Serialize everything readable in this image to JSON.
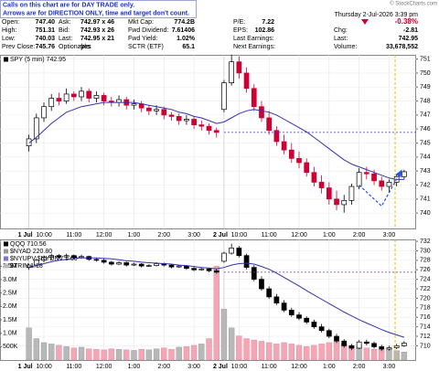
{
  "header": {
    "notice": [
      "Calls on this chart are for DAY TRADE only.",
      "Arrows are for DIRECTION ONLY, time and target don't count."
    ],
    "brand": "© StockCharts.com",
    "date": "Thursday 2-Jul-2026 3:39 pm",
    "rows": [
      [
        "Open:",
        "747.40",
        "Ask:",
        "742.97 x 46",
        "Mkt Cap:",
        "774.2B",
        "P/E:",
        "7.22",
        "-0.38%"
      ],
      [
        "High:",
        "751.31",
        "Bid:",
        "742.93 x 26",
        "Fwd Dividend:",
        "7.61406",
        "EPS:",
        "102.86",
        "Chg:",
        "-2.81"
      ],
      [
        "Low:",
        "740.03",
        "Last:",
        "742.95 x 21",
        "Fwd Yield:",
        "1.02%",
        "Last Earnings:",
        "Last:",
        "742.95"
      ],
      [
        "Prev Close:",
        "745.76",
        "Optionable:",
        "yes",
        "SCTR (ETF)",
        "65.1",
        "Next Earnings:",
        "Volume:",
        "33,678,552"
      ]
    ]
  },
  "chart_data": [
    {
      "type": "candlestick",
      "legend": [
        {
          "name": "SPY (5 min) 742.95",
          "color": "#000000"
        }
      ],
      "xlim": [
        -3.85,
        51.6
      ],
      "xticks": [
        {
          "value": 0,
          "label": "1 Jul"
        },
        {
          "value": 2,
          "label": "10:00"
        },
        {
          "value": 6,
          "label": "11:00"
        },
        {
          "value": 10,
          "label": "12:00"
        },
        {
          "value": 14,
          "label": "1:00"
        },
        {
          "value": 18,
          "label": "2:00"
        },
        {
          "value": 22,
          "label": "3:00"
        },
        {
          "value": 26,
          "label": "2 Jul"
        },
        {
          "value": 28,
          "label": "10:00"
        },
        {
          "value": 32,
          "label": "11:00"
        },
        {
          "value": 36,
          "label": "12:00"
        },
        {
          "value": 40,
          "label": "1:00"
        },
        {
          "value": 44,
          "label": "2:00"
        },
        {
          "value": 48,
          "label": "3:00"
        }
      ],
      "ylim": [
        738.9,
        751.3
      ],
      "yticks": [
        740,
        741,
        742,
        743,
        744,
        745,
        746,
        747,
        748,
        749,
        750,
        751
      ],
      "grid": true,
      "up_color": "#ffffff",
      "down_color": "#000000",
      "loss_color": "#cc0033",
      "open": [
        744.8,
        745.3,
        746.8,
        747.6,
        748.2,
        748.0,
        748.5,
        748.3,
        748.7,
        748.2,
        748.4,
        748.0,
        747.9,
        748.1,
        747.7,
        747.8,
        747.5,
        747.3,
        747.4,
        747.0,
        746.9,
        746.6,
        746.7,
        746.3,
        746.2,
        745.9,
        747.4,
        749.3,
        750.8,
        750.0,
        748.9,
        747.6,
        746.8,
        745.9,
        745.1,
        744.5,
        743.9,
        743.6,
        742.9,
        742.2,
        741.8,
        741.0,
        740.6,
        740.9,
        741.9,
        742.9,
        742.8,
        742.3,
        741.9,
        742.2,
        742.6
      ],
      "high": [
        745.6,
        747.1,
        747.9,
        748.5,
        748.6,
        748.9,
        748.7,
        749.0,
        748.9,
        748.7,
        748.6,
        748.3,
        748.4,
        748.3,
        748.1,
        748.0,
        747.7,
        747.7,
        747.6,
        747.2,
        747.1,
        747.0,
        746.9,
        746.6,
        746.4,
        746.1,
        749.5,
        751.31,
        751.2,
        750.4,
        749.2,
        748.0,
        747.3,
        746.2,
        745.6,
        745.0,
        744.4,
        743.9,
        743.3,
        742.7,
        742.2,
        741.6,
        741.3,
        742.1,
        743.2,
        743.3,
        743.1,
        742.6,
        742.4,
        742.8,
        743.1
      ],
      "low": [
        744.4,
        745.0,
        746.5,
        747.3,
        747.7,
        747.8,
        748.0,
        748.0,
        747.9,
        747.9,
        747.7,
        747.6,
        747.6,
        747.4,
        747.4,
        747.2,
        747.0,
        747.0,
        746.7,
        746.6,
        746.3,
        746.3,
        746.0,
        745.9,
        745.6,
        745.4,
        747.2,
        749.1,
        749.6,
        748.6,
        747.3,
        746.5,
        745.6,
        744.8,
        744.2,
        743.6,
        743.2,
        742.6,
        741.9,
        741.4,
        740.6,
        740.2,
        740.03,
        740.6,
        741.7,
        742.4,
        742.0,
        741.6,
        741.5,
        741.9,
        742.4
      ],
      "close": [
        745.3,
        746.8,
        747.6,
        748.2,
        748.0,
        748.5,
        748.3,
        748.7,
        748.2,
        748.4,
        748.0,
        747.9,
        748.1,
        747.7,
        747.8,
        747.5,
        747.3,
        747.4,
        747.0,
        746.9,
        746.6,
        746.7,
        746.3,
        746.2,
        745.9,
        745.76,
        749.3,
        750.8,
        750.0,
        748.9,
        747.6,
        746.8,
        745.9,
        745.1,
        744.5,
        743.9,
        743.6,
        742.9,
        742.2,
        741.8,
        741.0,
        740.6,
        740.9,
        741.9,
        742.9,
        742.8,
        742.3,
        741.9,
        742.2,
        742.6,
        742.95
      ],
      "ma": {
        "color": "#3333aa",
        "values": [
          745.0,
          745.4,
          745.9,
          746.4,
          746.8,
          747.2,
          747.4,
          747.6,
          747.7,
          747.8,
          747.9,
          747.9,
          747.9,
          747.9,
          747.9,
          747.8,
          747.7,
          747.6,
          747.5,
          747.4,
          747.2,
          747.1,
          746.9,
          746.8,
          746.6,
          746.4,
          746.5,
          746.8,
          747.1,
          747.3,
          747.4,
          747.3,
          747.2,
          747.0,
          746.7,
          746.4,
          746.1,
          745.8,
          745.4,
          745.0,
          744.6,
          744.2,
          743.8,
          743.5,
          743.3,
          743.1,
          742.9,
          742.7,
          742.5,
          742.4,
          742.4
        ]
      },
      "reference_line": {
        "value": 745.76,
        "color": "#3333cc"
      },
      "now_line": {
        "value": 48.8,
        "color": "#e6c200"
      },
      "forecast": {
        "x": [
          44,
          47,
          49.6
        ],
        "y": [
          742.0,
          740.5,
          743.0
        ],
        "color": "#2255ee"
      }
    },
    {
      "type": "candlestick",
      "legend": [
        {
          "name": "QQQ 710.56",
          "color": "#000000"
        },
        {
          "name": "$NYAD 220.80",
          "color": "#999999"
        },
        {
          "name": "$NYUPV:$NYDNV 1.00",
          "color": "#7777cc"
        },
        {
          "name": "$TRIN 1.18",
          "color": "#bbbbbb"
        }
      ],
      "xlim": [
        -3.85,
        51.6
      ],
      "xticks": [
        {
          "value": 0,
          "label": "1 Jul"
        },
        {
          "value": 2,
          "label": "10:00"
        },
        {
          "value": 6,
          "label": "11:00"
        },
        {
          "value": 10,
          "label": "12:00"
        },
        {
          "value": 14,
          "label": "1:00"
        },
        {
          "value": 18,
          "label": "2:00"
        },
        {
          "value": 22,
          "label": "3:00"
        },
        {
          "value": 26,
          "label": "2 Jul"
        },
        {
          "value": 28,
          "label": "10:00"
        },
        {
          "value": 32,
          "label": "11:00"
        },
        {
          "value": 36,
          "label": "12:00"
        },
        {
          "value": 40,
          "label": "1:00"
        },
        {
          "value": 44,
          "label": "2:00"
        },
        {
          "value": 48,
          "label": "3:00"
        }
      ],
      "ylim": [
        707,
        732.4
      ],
      "yticks": [
        710,
        712,
        714,
        716,
        718,
        720,
        722,
        724,
        726,
        728,
        730,
        732
      ],
      "grid": true,
      "up_color": "#ffffff",
      "down_color": "#000000",
      "loss_color": "#000000",
      "open": [
        726.5,
        727.0,
        728.0,
        728.6,
        729.0,
        728.7,
        729.0,
        728.6,
        728.8,
        728.2,
        728.0,
        727.6,
        727.2,
        727.5,
        727.0,
        727.2,
        726.8,
        726.9,
        727.3,
        727.0,
        726.6,
        726.8,
        726.3,
        726.0,
        726.2,
        725.8,
        727.8,
        729.5,
        730.6,
        729.0,
        726.5,
        724.0,
        722.0,
        720.3,
        719.0,
        717.5,
        716.5,
        715.8,
        715.0,
        714.0,
        713.2,
        712.0,
        711.0,
        710.0,
        709.5,
        710.8,
        710.5,
        709.8,
        709.3,
        709.6,
        710.0
      ],
      "high": [
        727.3,
        728.4,
        729.0,
        729.4,
        729.3,
        729.4,
        729.2,
        729.2,
        729.0,
        728.5,
        728.3,
        727.9,
        727.8,
        727.7,
        727.5,
        727.4,
        727.2,
        727.6,
        727.5,
        727.2,
        727.1,
        727.0,
        726.6,
        726.5,
        726.4,
        726.1,
        729.8,
        731.5,
        731.0,
        729.4,
        727.0,
        724.6,
        722.5,
        720.9,
        719.6,
        718.0,
        717.1,
        716.2,
        715.5,
        714.6,
        713.6,
        712.5,
        711.4,
        710.4,
        711.2,
        711.3,
        710.9,
        710.2,
        710.0,
        710.4,
        711.0
      ],
      "low": [
        726.0,
        726.7,
        727.6,
        728.2,
        728.3,
        728.4,
        728.2,
        728.3,
        727.9,
        727.7,
        727.3,
        726.9,
        727.0,
        726.7,
        726.8,
        726.5,
        726.6,
        726.7,
        726.7,
        726.3,
        726.4,
        726.0,
        725.7,
        725.8,
        725.5,
        725.2,
        727.5,
        729.2,
        728.6,
        726.1,
        723.6,
        721.6,
        719.9,
        718.6,
        717.1,
        716.1,
        715.4,
        714.6,
        713.6,
        712.8,
        711.6,
        710.6,
        709.6,
        709.1,
        709.3,
        710.1,
        709.4,
        708.9,
        709.0,
        709.3,
        709.8
      ],
      "close": [
        727.0,
        728.0,
        728.6,
        729.0,
        728.7,
        729.0,
        728.6,
        728.8,
        728.2,
        728.0,
        727.6,
        727.2,
        727.5,
        727.0,
        727.2,
        726.8,
        726.9,
        727.3,
        727.0,
        726.6,
        726.8,
        726.3,
        726.0,
        726.2,
        725.8,
        725.5,
        729.5,
        730.6,
        729.0,
        726.5,
        724.0,
        722.0,
        720.3,
        719.0,
        717.5,
        716.5,
        715.8,
        715.0,
        714.0,
        713.2,
        712.0,
        711.0,
        710.0,
        709.5,
        710.8,
        710.5,
        709.8,
        709.3,
        709.6,
        710.0,
        710.56
      ],
      "ma": {
        "color": "#3333aa",
        "values": [
          726.6,
          726.9,
          727.3,
          727.7,
          728.0,
          728.2,
          728.4,
          728.5,
          728.5,
          728.5,
          728.4,
          728.3,
          728.1,
          727.9,
          727.8,
          727.6,
          727.5,
          727.4,
          727.3,
          727.2,
          727.0,
          726.9,
          726.7,
          726.5,
          726.4,
          726.2,
          726.5,
          727.0,
          727.3,
          727.4,
          727.2,
          726.7,
          726.1,
          725.3,
          724.4,
          723.5,
          722.6,
          721.6,
          720.7,
          719.8,
          718.9,
          718.0,
          717.1,
          716.3,
          715.5,
          714.8,
          714.1,
          713.4,
          712.8,
          712.3,
          711.8
        ]
      },
      "reference_line": {
        "value": 725.5,
        "color": "#6633aa"
      },
      "now_line": {
        "value": 48.8,
        "color": "#e6c200"
      },
      "volume": {
        "color": "#b8b8b8",
        "loss_color": "#f2a6b6",
        "ylim": [
          0,
          4500000
        ],
        "yticks": [
          {
            "value": 500000,
            "label": "500K"
          },
          {
            "value": 1000000,
            "label": "1.0M"
          },
          {
            "value": 1500000,
            "label": "1.5M"
          },
          {
            "value": 2000000,
            "label": "2.0M"
          },
          {
            "value": 2500000,
            "label": "2.5M"
          },
          {
            "value": 3000000,
            "label": "3.0M"
          },
          {
            "value": 3500000,
            "label": "3.5M"
          }
        ],
        "values": [
          1200000,
          800000,
          650000,
          600000,
          550000,
          500000,
          450000,
          480000,
          420000,
          400000,
          380000,
          420000,
          400000,
          380000,
          360000,
          400000,
          380000,
          420000,
          450000,
          400000,
          480000,
          500000,
          550000,
          600000,
          800000,
          3500000,
          1900000,
          1200000,
          900000,
          800000,
          750000,
          700000,
          650000,
          600000,
          650000,
          600000,
          550000,
          500000,
          550000,
          600000,
          650000,
          700000,
          600000,
          550000,
          500000,
          450000,
          400000,
          380000,
          420000,
          350000,
          300000
        ]
      }
    }
  ]
}
